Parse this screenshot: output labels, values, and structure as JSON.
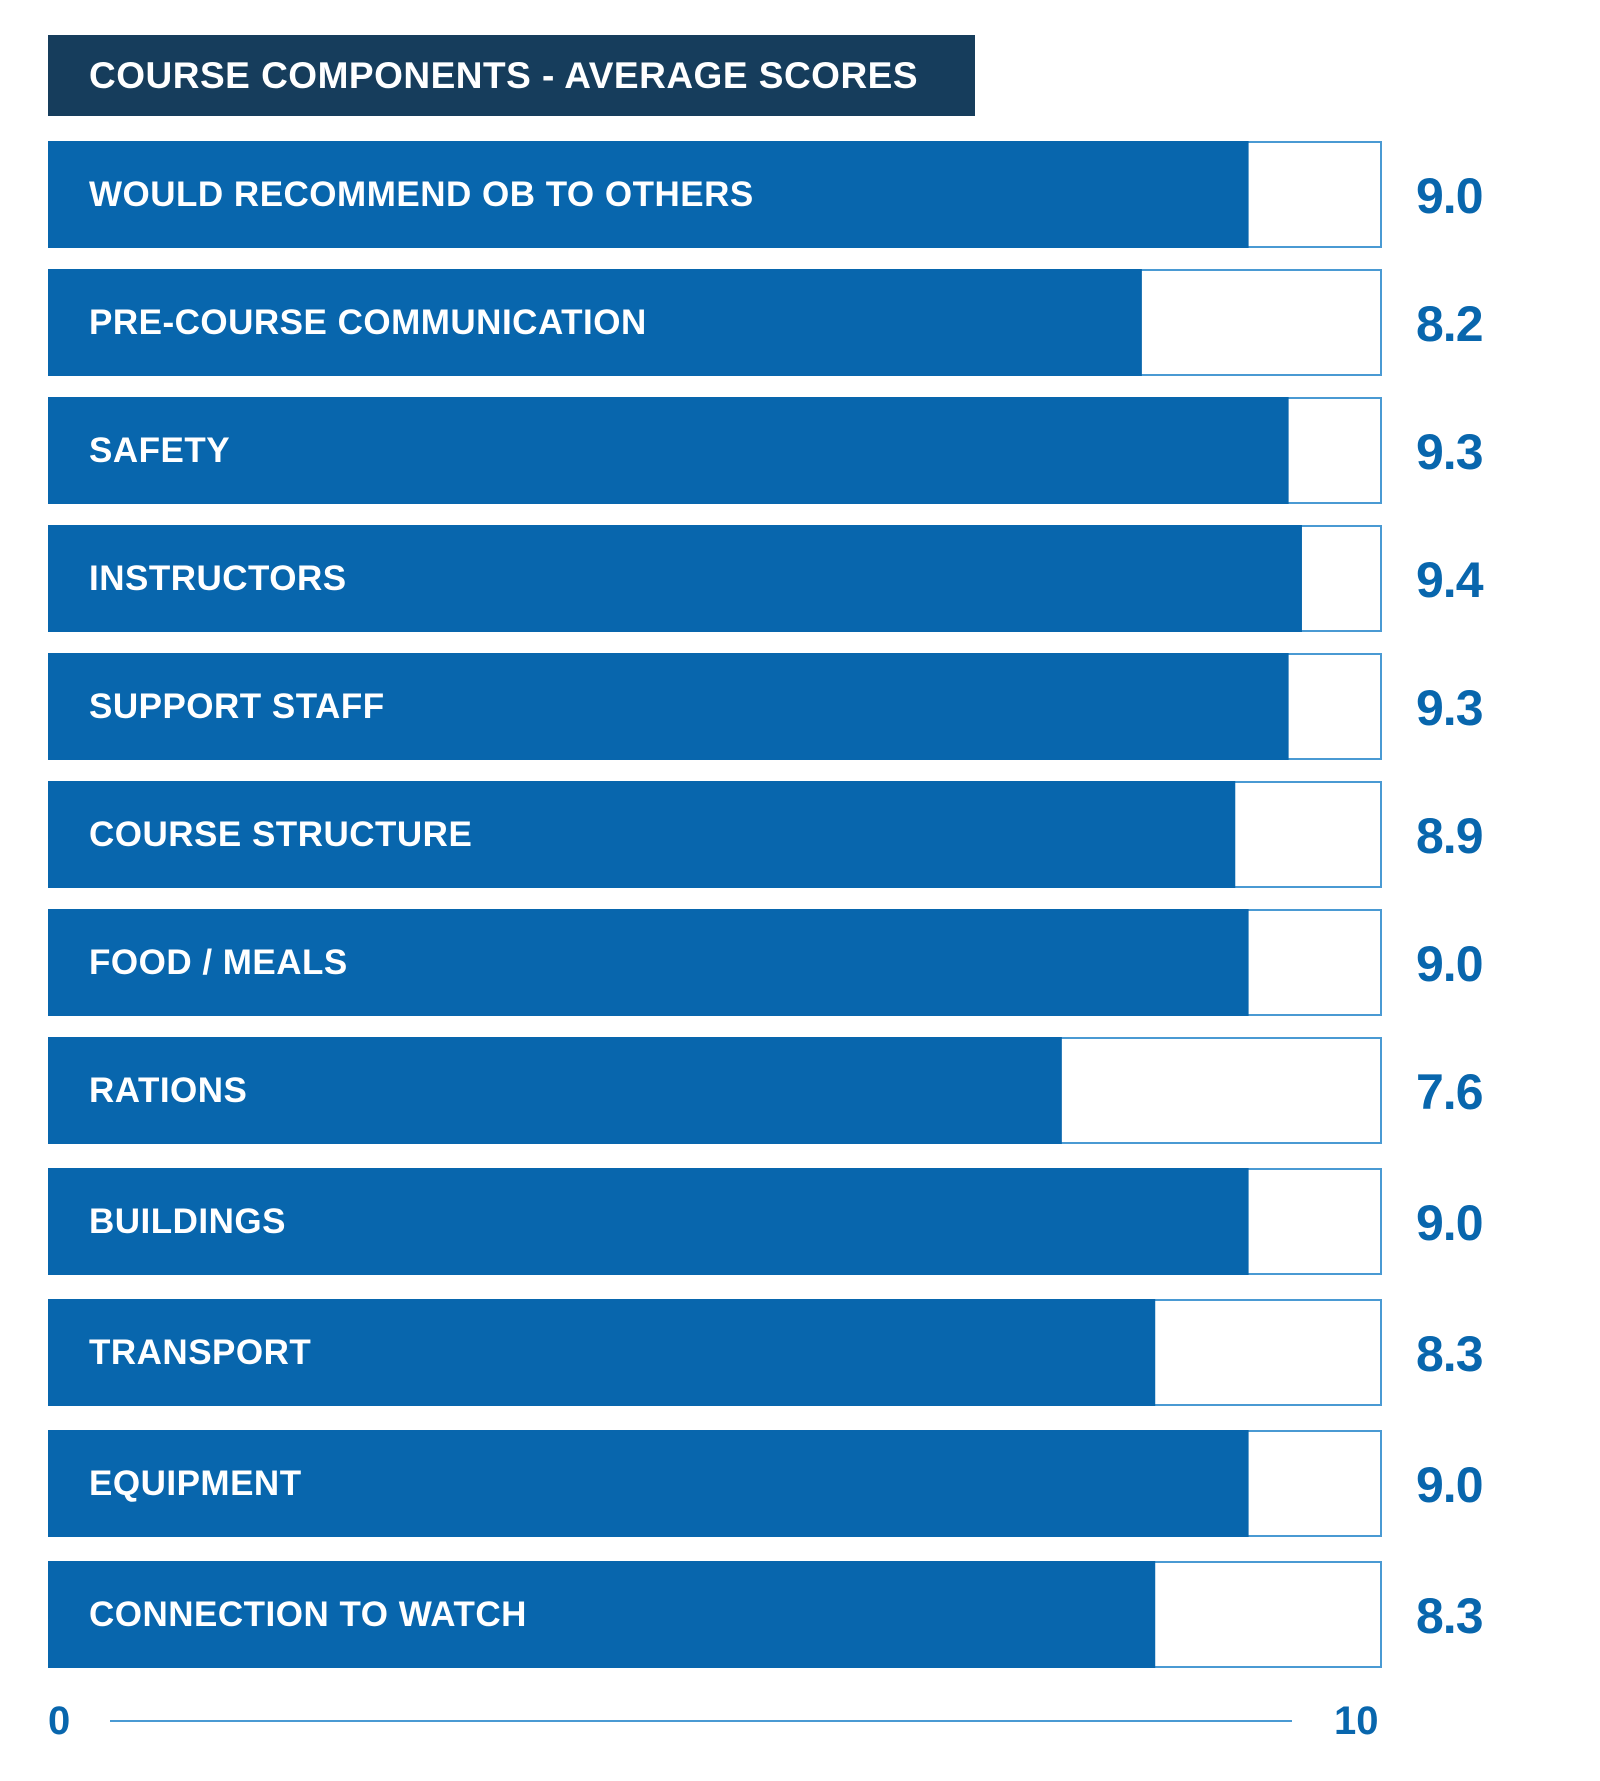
{
  "chart_data": {
    "type": "bar",
    "orientation": "horizontal",
    "title": "COURSE COMPONENTS - AVERAGE SCORES",
    "categories": [
      "WOULD RECOMMEND OB TO OTHERS",
      "PRE-COURSE COMMUNICATION",
      "SAFETY",
      "INSTRUCTORS",
      "SUPPORT STAFF",
      "COURSE STRUCTURE",
      "FOOD / MEALS",
      "RATIONS",
      "BUILDINGS",
      "TRANSPORT",
      "EQUIPMENT",
      "CONNECTION TO WATCH"
    ],
    "values": [
      9.0,
      8.2,
      9.3,
      9.4,
      9.3,
      8.9,
      9.0,
      7.6,
      9.0,
      8.3,
      9.0,
      8.3
    ],
    "value_labels": [
      "9.0",
      "8.2",
      "9.3",
      "9.4",
      "9.3",
      "8.9",
      "9.0",
      "7.6",
      "9.0",
      "8.3",
      "9.0",
      "8.3"
    ],
    "xlim": [
      0,
      10
    ],
    "axis_tick_labels": [
      "0",
      "10"
    ],
    "grid": false,
    "colors": {
      "bar": "#0866ad",
      "track_border": "#4a9ad3",
      "title_bg": "#163d5c",
      "value_text": "#0866ad"
    }
  }
}
